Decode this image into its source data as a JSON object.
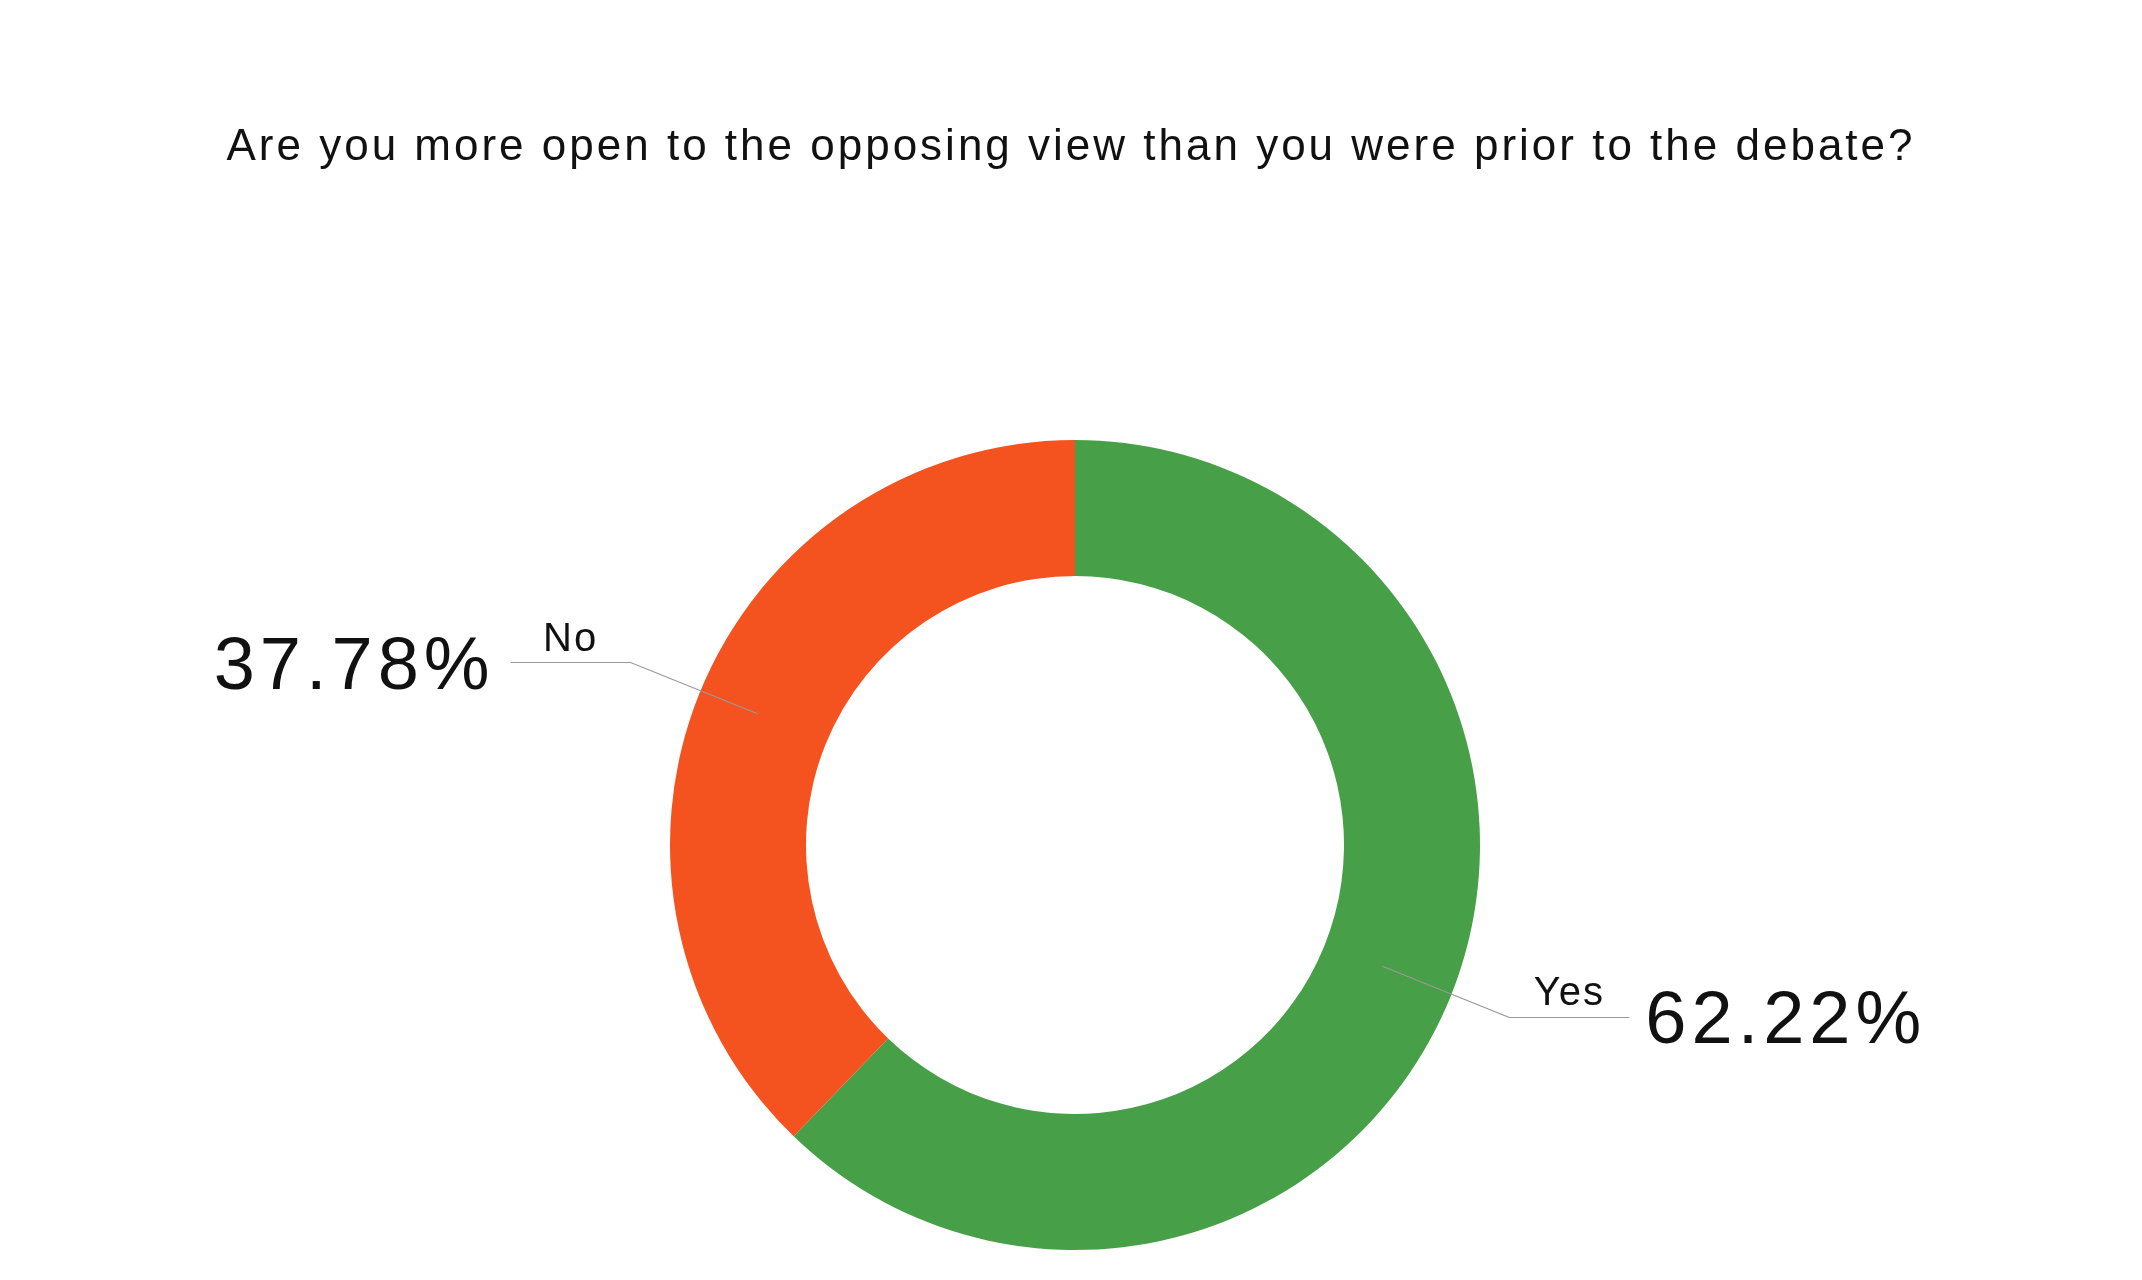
{
  "chart_data": {
    "type": "donut",
    "title": "Are you more open to the opposing view than you were prior to the debate?",
    "categories": [
      "Yes",
      "No"
    ],
    "values": [
      62.22,
      37.78
    ],
    "colors": [
      "#47a047",
      "#f45320"
    ],
    "value_labels": [
      "62.22%",
      "37.78%"
    ]
  }
}
